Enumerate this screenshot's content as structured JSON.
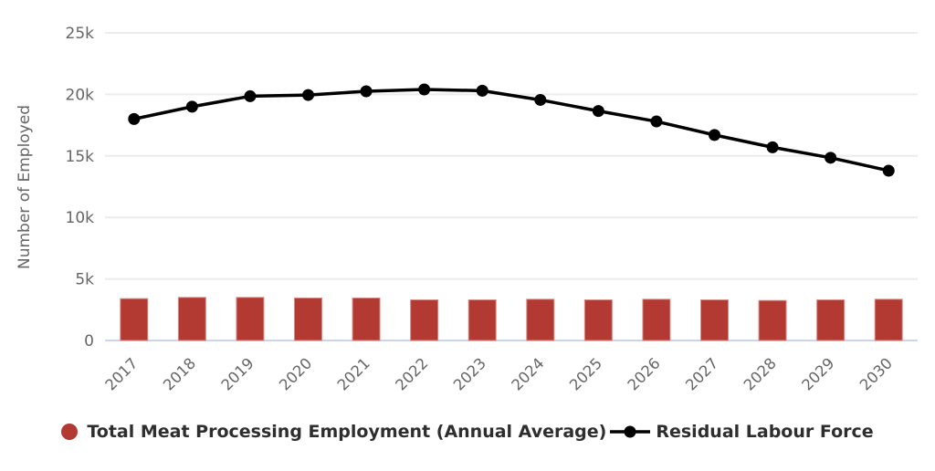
{
  "chart_data": {
    "type": "bar",
    "title": "",
    "xlabel": "",
    "ylabel": "Number of Employed",
    "categories": [
      "2017",
      "2018",
      "2019",
      "2020",
      "2021",
      "2022",
      "2023",
      "2024",
      "2025",
      "2026",
      "2027",
      "2028",
      "2029",
      "2030"
    ],
    "series": [
      {
        "name": "Total Meat Processing Employment (Annual Average)",
        "type": "bar",
        "color": "#b33a33",
        "values": [
          3400,
          3500,
          3500,
          3450,
          3450,
          3300,
          3300,
          3350,
          3300,
          3350,
          3300,
          3250,
          3300,
          3350
        ]
      },
      {
        "name": "Residual Labour Force",
        "type": "line",
        "color": "#000000",
        "values": [
          18000,
          19000,
          19850,
          19950,
          20250,
          20400,
          20300,
          19550,
          18650,
          17800,
          16700,
          15700,
          14850,
          13800
        ]
      }
    ],
    "ylim": [
      0,
      25000
    ],
    "yticks": [
      0,
      5000,
      10000,
      15000,
      20000,
      25000
    ],
    "ytick_labels": [
      "0",
      "5k",
      "10k",
      "15k",
      "20k",
      "25k"
    ],
    "grid": true,
    "legend_position": "bottom",
    "colors": {
      "gridline": "#ececec",
      "axis_line": "#ccd6eb",
      "tick_text": "#666666",
      "axis_title_text": "#666666",
      "legend_text": "#2e2e2e",
      "bar_fill": "#b33a33",
      "bar_border": "#d98c85",
      "line_color": "#000000"
    }
  }
}
